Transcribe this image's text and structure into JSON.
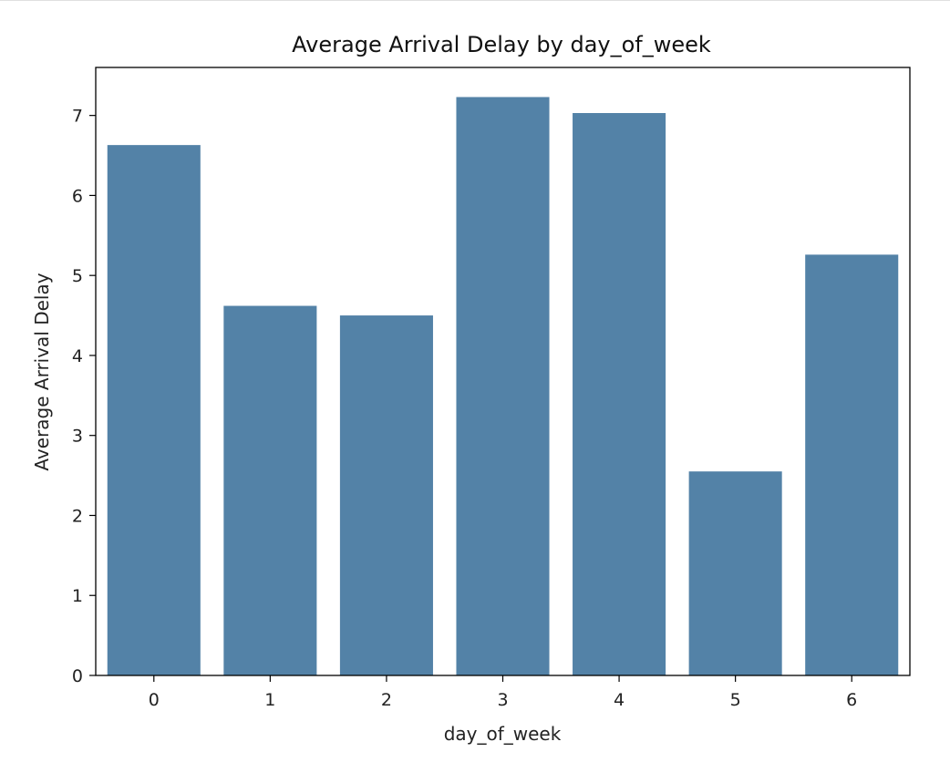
{
  "chart_data": {
    "type": "bar",
    "title": "Average Arrival Delay by day_of_week",
    "xlabel": "day_of_week",
    "ylabel": "Average Arrival Delay",
    "categories": [
      "0",
      "1",
      "2",
      "3",
      "4",
      "5",
      "6"
    ],
    "values": [
      6.63,
      4.62,
      4.5,
      7.23,
      7.03,
      2.55,
      5.26
    ],
    "yticks": [
      0,
      1,
      2,
      3,
      4,
      5,
      6,
      7
    ],
    "ylim": [
      0,
      7.6
    ],
    "grid": false,
    "legend": "none",
    "colors": {
      "bar": "#5382a7",
      "axis": "#000000",
      "text": "#222222"
    }
  }
}
